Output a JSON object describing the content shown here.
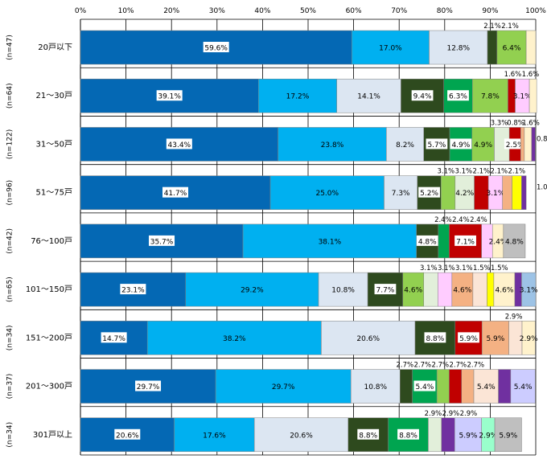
{
  "chart_data": {
    "type": "bar",
    "orientation": "horizontal",
    "stacked": true,
    "xlim": [
      0,
      100
    ],
    "x_tick_labels": [
      "0%",
      "10%",
      "20%",
      "30%",
      "40%",
      "50%",
      "60%",
      "70%",
      "80%",
      "90%",
      "100%"
    ],
    "grid": true,
    "colors": [
      "#0468b4",
      "#00b0f0",
      "#dce6f2",
      "#2e4a1e",
      "#00a550",
      "#92d050",
      "#e2efda",
      "#c00000",
      "#ffccff",
      "#f4b183",
      "#fbe5d6",
      "#ffff00",
      "#fff2cc",
      "#7030a0",
      "#ccccff",
      "#9dc3e6",
      "#99ffcc",
      "#bfbfbf"
    ],
    "rows": [
      {
        "label": "20戸以下",
        "n": "(n=47)",
        "values": [
          59.6,
          17.0,
          12.8,
          2.1,
          0,
          6.4,
          0,
          0,
          0,
          0,
          0,
          0,
          2.1,
          0,
          0,
          0,
          0,
          0
        ],
        "inside_labels": [
          "59.6%",
          "17.0%",
          "12.8%",
          "",
          "",
          "6.4%",
          "",
          "",
          "",
          "",
          "",
          "",
          "",
          "",
          "",
          "",
          "",
          ""
        ],
        "above_labels": [
          "2.1%",
          "2.1%"
        ]
      },
      {
        "label": "21～30戸",
        "n": "(n=64)",
        "values": [
          39.1,
          17.2,
          14.1,
          9.4,
          6.3,
          7.8,
          0,
          1.6,
          3.1,
          0,
          0,
          0,
          1.6,
          0,
          0,
          0,
          0,
          0
        ],
        "inside_labels": [
          "39.1%",
          "17.2%",
          "14.1%",
          "9.4%",
          "6.3%",
          "7.8%",
          "",
          "",
          "3.1%",
          "",
          "",
          "",
          "",
          "",
          "",
          "",
          "",
          ""
        ],
        "above_labels": [
          "1.6%",
          "1.6%"
        ]
      },
      {
        "label": "31～50戸",
        "n": "(n=122)",
        "values": [
          43.4,
          23.8,
          8.2,
          5.7,
          4.9,
          4.9,
          3.3,
          2.5,
          0,
          0.8,
          0,
          0,
          1.6,
          0.8,
          0,
          0,
          0,
          0
        ],
        "inside_labels": [
          "43.4%",
          "23.8%",
          "8.2%",
          "5.7%",
          "4.9%",
          "4.9%",
          "",
          "2.5%",
          "",
          "",
          "",
          "",
          "",
          "",
          "",
          "",
          "",
          ""
        ],
        "above_labels": [
          "3.3%",
          "0.8%",
          "1.6%"
        ],
        "side_labels": [
          "0.8%"
        ]
      },
      {
        "label": "51～75戸",
        "n": "(n=96)",
        "values": [
          41.7,
          25.0,
          7.3,
          5.2,
          0,
          3.1,
          4.2,
          3.1,
          3.1,
          2.1,
          0,
          2.1,
          0,
          1.0,
          0,
          0,
          0,
          0
        ],
        "inside_labels": [
          "41.7%",
          "25.0%",
          "7.3%",
          "5.2%",
          "",
          "",
          "4.2%",
          "",
          "3.1%",
          "",
          "",
          "",
          "",
          "",
          "",
          "",
          "",
          ""
        ],
        "above_labels": [
          "3.1%",
          "3.1%",
          "2.1%",
          "2.1%",
          "2.1%"
        ],
        "side_labels": [
          "1.0%"
        ]
      },
      {
        "label": "76～100戸",
        "n": "(n=42)",
        "values": [
          35.7,
          38.1,
          0,
          4.8,
          2.4,
          0,
          0,
          7.1,
          2.4,
          0,
          0,
          0,
          2.4,
          0,
          0,
          0,
          0,
          4.8
        ],
        "inside_labels": [
          "35.7%",
          "38.1%",
          "",
          "4.8%",
          "",
          "",
          "",
          "7.1%",
          "",
          "",
          "",
          "",
          "2.4%",
          "",
          "",
          "",
          "",
          "4.8%"
        ],
        "above_labels": [
          "2.4%",
          "2.4%",
          "2.4%"
        ]
      },
      {
        "label": "101～150戸",
        "n": "(n=65)",
        "values": [
          23.1,
          29.2,
          10.8,
          7.7,
          0,
          4.6,
          3.1,
          0,
          3.1,
          4.6,
          3.1,
          1.5,
          4.6,
          1.5,
          0,
          3.1,
          0,
          0
        ],
        "inside_labels": [
          "23.1%",
          "29.2%",
          "10.8%",
          "7.7%",
          "",
          "4.6%",
          "",
          "",
          "",
          "4.6%",
          "",
          "",
          "4.6%",
          "",
          "",
          "3.1%",
          "",
          ""
        ],
        "above_labels": [
          "3.1%",
          "3.1%",
          "3.1%",
          "1.5%",
          "1.5%"
        ]
      },
      {
        "label": "151～200戸",
        "n": "(n=34)",
        "values": [
          14.7,
          38.2,
          20.6,
          8.8,
          0,
          0,
          0,
          5.9,
          0,
          5.9,
          2.9,
          0,
          2.9,
          0,
          0,
          0,
          0,
          0
        ],
        "inside_labels": [
          "14.7%",
          "38.2%",
          "20.6%",
          "8.8%",
          "",
          "",
          "",
          "5.9%",
          "",
          "5.9%",
          "",
          "",
          "2.9%",
          "",
          "",
          "",
          "",
          ""
        ],
        "above_labels": [
          "2.9%"
        ]
      },
      {
        "label": "201～300戸",
        "n": "(n=37)",
        "values": [
          29.7,
          29.7,
          10.8,
          2.7,
          5.4,
          2.7,
          0,
          2.7,
          0,
          2.7,
          5.4,
          0,
          0,
          2.7,
          5.4,
          0,
          0,
          0
        ],
        "inside_labels": [
          "29.7%",
          "29.7%",
          "10.8%",
          "",
          "5.4%",
          "",
          "",
          "",
          "",
          "",
          "5.4%",
          "",
          "",
          "",
          "5.4%",
          "",
          "",
          ""
        ],
        "above_labels": [
          "2.7%",
          "2.7%",
          "2.7%",
          "2.7%",
          "2.7%"
        ]
      },
      {
        "label": "301戸以上",
        "n": "(n=34)",
        "values": [
          20.6,
          17.6,
          20.6,
          8.8,
          8.8,
          0,
          2.9,
          0,
          0,
          0,
          0,
          0,
          0,
          2.9,
          5.9,
          0,
          2.9,
          5.9
        ],
        "inside_labels": [
          "20.6%",
          "17.6%",
          "20.6%",
          "8.8%",
          "8.8%",
          "",
          "",
          "",
          "",
          "",
          "",
          "",
          "",
          "",
          "5.9%",
          "",
          "2.9%",
          "5.9%"
        ],
        "above_labels": [
          "2.9%",
          "2.9%",
          "2.9%"
        ]
      }
    ]
  }
}
